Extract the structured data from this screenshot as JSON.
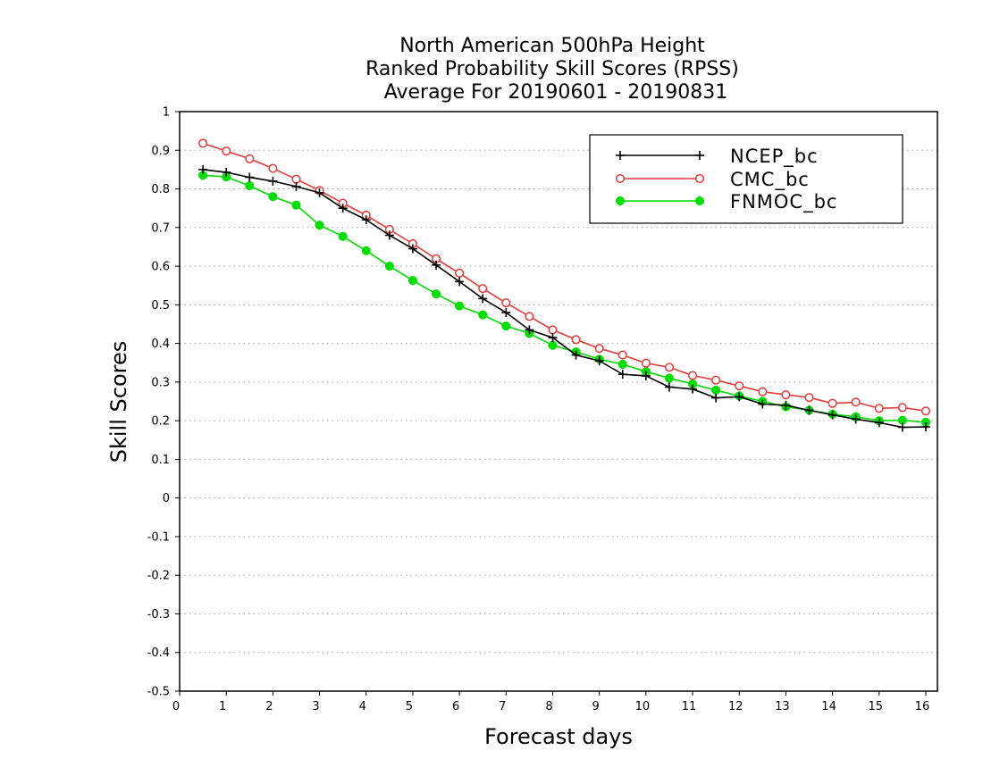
{
  "chart_data": {
    "type": "line",
    "title": [
      "North American 500hPa Height",
      "Ranked Probability Skill Scores (RPSS)",
      "Average For 20190601 - 20190831"
    ],
    "xlabel": "Forecast days",
    "ylabel": "Skill Scores",
    "xlim": [
      0,
      16.25
    ],
    "ylim": [
      -0.5,
      1
    ],
    "xticks": [
      "0",
      "1",
      "2",
      "3",
      "4",
      "5",
      "6",
      "7",
      "8",
      "9",
      "10",
      "11",
      "12",
      "13",
      "14",
      "15",
      "16"
    ],
    "yticks": [
      "-0.5",
      "-0.4",
      "-0.3",
      "-0.2",
      "-0.1",
      "0",
      "0.1",
      "0.2",
      "0.3",
      "0.4",
      "0.5",
      "0.6",
      "0.7",
      "0.8",
      "0.9",
      "1"
    ],
    "grid": true,
    "legend_position": "top-right",
    "x": [
      0.5,
      1,
      1.5,
      2,
      2.5,
      3,
      3.5,
      4,
      4.5,
      5,
      5.5,
      6,
      6.5,
      7,
      7.5,
      8,
      8.5,
      9,
      9.5,
      10,
      10.5,
      11,
      11.5,
      12,
      12.5,
      13,
      13.5,
      14,
      14.5,
      15,
      15.5,
      16
    ],
    "series": [
      {
        "name": "NCEP_bc",
        "color": "#000000",
        "marker": "plus",
        "values": [
          0.85,
          0.843,
          0.83,
          0.82,
          0.806,
          0.79,
          0.75,
          0.72,
          0.68,
          0.645,
          0.603,
          0.56,
          0.516,
          0.48,
          0.435,
          0.415,
          0.37,
          0.355,
          0.32,
          0.316,
          0.287,
          0.282,
          0.259,
          0.262,
          0.243,
          0.24,
          0.227,
          0.215,
          0.204,
          0.195,
          0.183,
          0.184
        ]
      },
      {
        "name": "CMC_bc",
        "color": "#e53a3a",
        "marker": "open-circle",
        "values": [
          0.918,
          0.898,
          0.878,
          0.853,
          0.825,
          0.796,
          0.763,
          0.732,
          0.695,
          0.658,
          0.619,
          0.582,
          0.542,
          0.505,
          0.47,
          0.435,
          0.41,
          0.387,
          0.37,
          0.349,
          0.338,
          0.317,
          0.305,
          0.29,
          0.275,
          0.267,
          0.26,
          0.245,
          0.248,
          0.232,
          0.234,
          0.225
        ]
      },
      {
        "name": "FNMOC_bc",
        "color": "#00dd00",
        "marker": "filled-circle",
        "values": [
          0.835,
          0.831,
          0.808,
          0.78,
          0.758,
          0.706,
          0.677,
          0.64,
          0.6,
          0.563,
          0.528,
          0.497,
          0.474,
          0.445,
          0.426,
          0.395,
          0.378,
          0.359,
          0.346,
          0.327,
          0.31,
          0.295,
          0.279,
          0.264,
          0.25,
          0.236,
          0.227,
          0.217,
          0.21,
          0.2,
          0.201,
          0.196
        ]
      }
    ]
  }
}
